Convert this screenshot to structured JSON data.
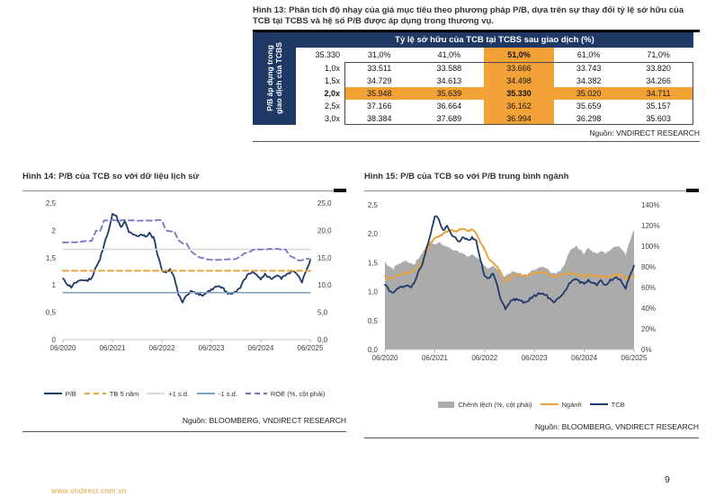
{
  "page": {
    "page_number": "9",
    "watermark": "www.vndirect.com.vn"
  },
  "colors": {
    "navy": "#1F3A68",
    "header_navy": "#1F3864",
    "orange": "#E8A33D",
    "table_orange": "#F3A238",
    "light_gray": "#D9D9D9",
    "steel_blue": "#7FA3BE",
    "purple": "#7575C1",
    "area_gray": "#ABABAB",
    "axis_text": "#404040"
  },
  "fig13": {
    "title": "Hình 13: Phân tích độ nhạy của giá mục tiêu theo phương pháp P/B, dựa trên sự thay đổi tỷ lệ sở hữu của TCB tại TCBS và hệ số P/B được áp dụng trong thương vụ.",
    "table": {
      "header": "Tỷ lệ sở hữu của TCB tại TCBS sau giao dịch (%)",
      "side_label": "P/B áp dụng trong giao dịch của TCBS",
      "base_value": "35.330",
      "col_headers": [
        "31,0%",
        "41,0%",
        "51,0%",
        "61,0%",
        "71,0%"
      ],
      "highlight_col": 2,
      "highlight_row": 2,
      "rows": [
        {
          "label": "1,0x",
          "values": [
            "33.511",
            "33.588",
            "33.666",
            "33.743",
            "33.820"
          ]
        },
        {
          "label": "1,5x",
          "values": [
            "34.729",
            "34.613",
            "34.498",
            "34.382",
            "34.266"
          ]
        },
        {
          "label": "2,0x",
          "values": [
            "35.948",
            "35.639",
            "35.330",
            "35.020",
            "34.711"
          ]
        },
        {
          "label": "2,5x",
          "values": [
            "37.166",
            "36.664",
            "36.162",
            "35.659",
            "35.157"
          ]
        },
        {
          "label": "3,0x",
          "values": [
            "38.384",
            "37.689",
            "36.994",
            "36.298",
            "35.603"
          ]
        }
      ]
    },
    "source": "Nguồn: VNDIRECT RESEARCH"
  },
  "chart_data": [
    {
      "type": "line",
      "title": "Hình 14: P/B của TCB so với dữ liệu lịch sử",
      "source": "Nguồn: BLOOMBERG, VNDIRECT RESEARCH",
      "x_ticks": [
        "06/2020",
        "06/2021",
        "06/2022",
        "06/2023",
        "06/2024",
        "06/2025"
      ],
      "left_axis": {
        "ticks": [
          "2,5",
          "2",
          "1,5",
          "1",
          "0,5",
          "0"
        ],
        "min": 0,
        "max": 2.5
      },
      "right_axis": {
        "ticks": [
          "25,0",
          "20,0",
          "15,0",
          "10,0",
          "5,0",
          "0,0"
        ],
        "min": 0,
        "max": 25
      },
      "legend_position": "bottom",
      "series": [
        {
          "name": "P/B",
          "axis": "left",
          "color": "navy",
          "style": "solid",
          "values": [
            1.12,
            1.02,
            0.96,
            1.06,
            1.08,
            1.1,
            1.08,
            1.13,
            1.32,
            1.48,
            1.74,
            1.98,
            2.3,
            2.25,
            2.05,
            2.15,
            1.98,
            1.92,
            1.88,
            1.94,
            1.88,
            1.94,
            1.86,
            1.55,
            1.27,
            1.22,
            1.3,
            1.12,
            0.84,
            0.7,
            0.8,
            0.88,
            0.85,
            0.83,
            0.8,
            0.88,
            0.92,
            0.96,
            0.97,
            0.92,
            0.85,
            0.83,
            0.88,
            0.96,
            1.1,
            1.2,
            1.24,
            1.17,
            1.12,
            1.2,
            1.14,
            1.12,
            1.18,
            1.12,
            1.18,
            1.22,
            1.25,
            1.18,
            1.06,
            1.28,
            1.45
          ]
        },
        {
          "name": "TB 5 năm",
          "axis": "left",
          "color": "orange",
          "style": "dashed",
          "const": 1.26
        },
        {
          "name": "+1 s.d.",
          "axis": "left",
          "color": "light_gray",
          "style": "solid",
          "const": 1.65
        },
        {
          "name": "-1 s.d.",
          "axis": "left",
          "color": "steel_blue",
          "style": "solid",
          "const": 0.86
        },
        {
          "name": "ROE (%, cột phải)",
          "axis": "right",
          "color": "purple",
          "style": "dashed",
          "values": [
            17.8,
            17.8,
            17.8,
            17.8,
            17.9,
            18.0,
            18.0,
            18.1,
            19.9,
            19.8,
            21.8,
            21.8,
            21.9,
            21.8,
            21.8,
            21.9,
            21.8,
            21.8,
            21.8,
            21.8,
            21.8,
            21.8,
            21.8,
            21.9,
            21.8,
            20.0,
            19.8,
            19.8,
            18.2,
            17.6,
            17.6,
            16.2,
            15.6,
            15.1,
            14.9,
            14.7,
            14.6,
            14.6,
            14.6,
            14.7,
            14.7,
            14.7,
            14.8,
            15.2,
            15.8,
            15.9,
            16.4,
            16.5,
            16.5,
            16.5,
            16.6,
            16.6,
            16.6,
            16.5,
            16.5,
            15.4,
            15.0,
            14.5,
            14.5,
            14.8,
            14.7
          ]
        }
      ]
    },
    {
      "type": "line+area",
      "title": "Hình 15: P/B của TCB so với P/B trung bình ngành",
      "source": "Nguồn: BLOOMBERG, VNDIRECT RESEARCH",
      "x_ticks": [
        "06/2020",
        "06/2021",
        "06/2022",
        "06/2023",
        "06/2024",
        "06/2025"
      ],
      "left_axis": {
        "ticks": [
          "2,5",
          "2,0",
          "1,5",
          "1,0",
          "0,5",
          "0,0"
        ],
        "min": 0,
        "max": 2.5
      },
      "right_axis": {
        "ticks": [
          "140%",
          "120%",
          "100%",
          "80%",
          "60%",
          "40%",
          "20%",
          "0%"
        ],
        "min": 0,
        "max": 140
      },
      "legend_position": "bottom",
      "series": [
        {
          "name": "Chênh lệch (%, cột phải)",
          "axis": "right",
          "color": "area_gray",
          "style": "area",
          "values": [
            85,
            80,
            78,
            82,
            84,
            86,
            83,
            82,
            88,
            93,
            100,
            105,
            102,
            104,
            100,
            99,
            97,
            95,
            94,
            93,
            90,
            92,
            90,
            85,
            80,
            78,
            82,
            78,
            72,
            70,
            74,
            76,
            74,
            73,
            72,
            75,
            77,
            79,
            80,
            78,
            74,
            73,
            76,
            80,
            90,
            98,
            100,
            96,
            93,
            98,
            95,
            93,
            96,
            93,
            95,
            98,
            100,
            98,
            92,
            105,
            116
          ]
        },
        {
          "name": "Ngành",
          "axis": "left",
          "color": "orange",
          "style": "solid",
          "values": [
            1.27,
            1.22,
            1.25,
            1.28,
            1.3,
            1.32,
            1.33,
            1.36,
            1.42,
            1.52,
            1.68,
            1.84,
            1.92,
            1.95,
            2.0,
            2.04,
            2.07,
            2.04,
            2.07,
            2.09,
            2.04,
            2.07,
            2.0,
            1.86,
            1.72,
            1.56,
            1.5,
            1.42,
            1.32,
            1.18,
            1.22,
            1.28,
            1.3,
            1.26,
            1.28,
            1.3,
            1.32,
            1.33,
            1.34,
            1.32,
            1.28,
            1.25,
            1.28,
            1.3,
            1.32,
            1.33,
            1.3,
            1.28,
            1.26,
            1.3,
            1.28,
            1.26,
            1.28,
            1.25,
            1.26,
            1.28,
            1.3,
            1.28,
            1.22,
            1.25,
            1.27
          ]
        },
        {
          "name": "TCB",
          "axis": "left",
          "color": "navy",
          "style": "solid",
          "values": [
            1.12,
            1.02,
            0.96,
            1.06,
            1.08,
            1.1,
            1.08,
            1.13,
            1.32,
            1.48,
            1.74,
            1.98,
            2.3,
            2.25,
            2.05,
            2.15,
            1.98,
            1.92,
            1.88,
            1.94,
            1.88,
            1.94,
            1.86,
            1.55,
            1.27,
            1.22,
            1.3,
            1.12,
            0.84,
            0.7,
            0.8,
            0.88,
            0.85,
            0.83,
            0.8,
            0.88,
            0.92,
            0.96,
            0.97,
            0.92,
            0.85,
            0.83,
            0.88,
            0.96,
            1.1,
            1.2,
            1.24,
            1.17,
            1.12,
            1.2,
            1.14,
            1.12,
            1.18,
            1.12,
            1.18,
            1.22,
            1.25,
            1.18,
            1.06,
            1.28,
            1.45
          ]
        }
      ]
    }
  ]
}
